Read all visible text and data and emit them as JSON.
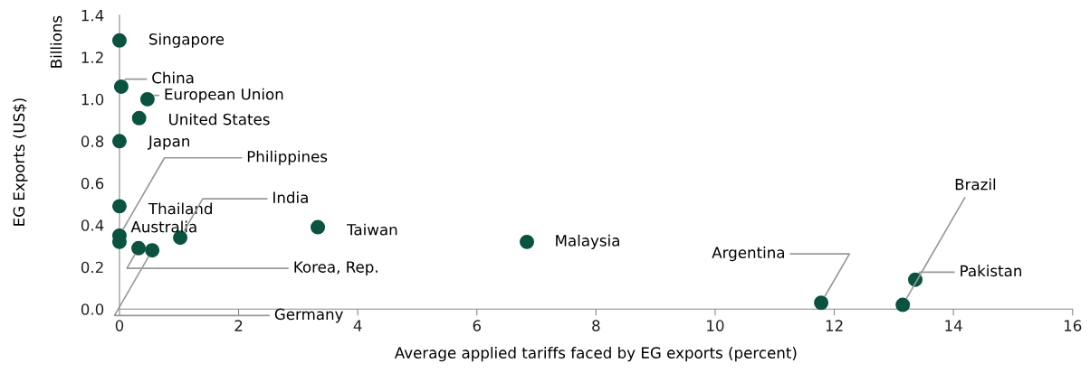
{
  "chart_data": {
    "type": "scatter",
    "xlabel": "Average applied tariffs faced by EG exports (percent)",
    "ylabel": "EG Exports (US$)",
    "x": [
      0,
      0.03,
      0.47,
      0.33,
      0,
      0,
      0,
      0,
      1.02,
      0.32,
      0.55,
      3.33,
      6.84,
      11.78,
      13.15,
      13.36
    ],
    "series": [
      {
        "color": "#0b5240",
        "values": [
          1.28,
          1.06,
          1.0,
          0.91,
          0.8,
          0.35,
          0.49,
          0.32,
          0.34,
          0.29,
          0.28,
          0.39,
          0.32,
          0.03,
          0.02,
          0.14
        ]
      }
    ],
    "annotations": [
      "Billions",
      {
        "text": "Singapore",
        "x": 0,
        "y": 1.28
      },
      {
        "text": "China",
        "x": 0.03,
        "y": 1.06
      },
      {
        "text": "European Union",
        "x": 0.47,
        "y": 1.0
      },
      {
        "text": "United States",
        "x": 0.33,
        "y": 0.91
      },
      {
        "text": "Japan",
        "x": 0,
        "y": 0.8
      },
      {
        "text": "Philippines",
        "x": 0,
        "y": 0.35
      },
      {
        "text": "Thailand",
        "x": 0,
        "y": 0.49
      },
      {
        "text": "Australia",
        "x": 0,
        "y": 0.32
      },
      {
        "text": "India",
        "x": 1.02,
        "y": 0.34
      },
      {
        "text": "Korea, Rep.",
        "x": 0.32,
        "y": 0.29
      },
      {
        "text": "Germany",
        "x": 0.55,
        "y": 0.28
      },
      {
        "text": "Taiwan",
        "x": 3.33,
        "y": 0.39
      },
      {
        "text": "Malaysia",
        "x": 6.84,
        "y": 0.32
      },
      {
        "text": "Argentina",
        "x": 11.78,
        "y": 0.03
      },
      {
        "text": "Brazil",
        "x": 13.15,
        "y": 0.02
      },
      {
        "text": "Pakistan",
        "x": 13.36,
        "y": 0.14
      }
    ],
    "xlim": [
      0,
      16
    ],
    "xticks": [
      0,
      2,
      4,
      6,
      8,
      10,
      12,
      14,
      16
    ],
    "ylim": [
      0,
      1.4
    ],
    "yticks": [
      {
        "value": 0,
        "label": "0.0"
      },
      {
        "value": 0.2,
        "label": "0.2"
      },
      {
        "value": 0.4,
        "label": "0.4"
      },
      {
        "value": 0.6,
        "label": "0.6"
      },
      {
        "value": 0.8,
        "label": "0.8"
      },
      {
        "value": 1.0,
        "label": "1.0"
      },
      {
        "value": 1.2,
        "label": "1.2"
      },
      {
        "value": 1.4,
        "label": "1.4"
      }
    ],
    "grid": false,
    "legend": false,
    "marker": "circle"
  }
}
